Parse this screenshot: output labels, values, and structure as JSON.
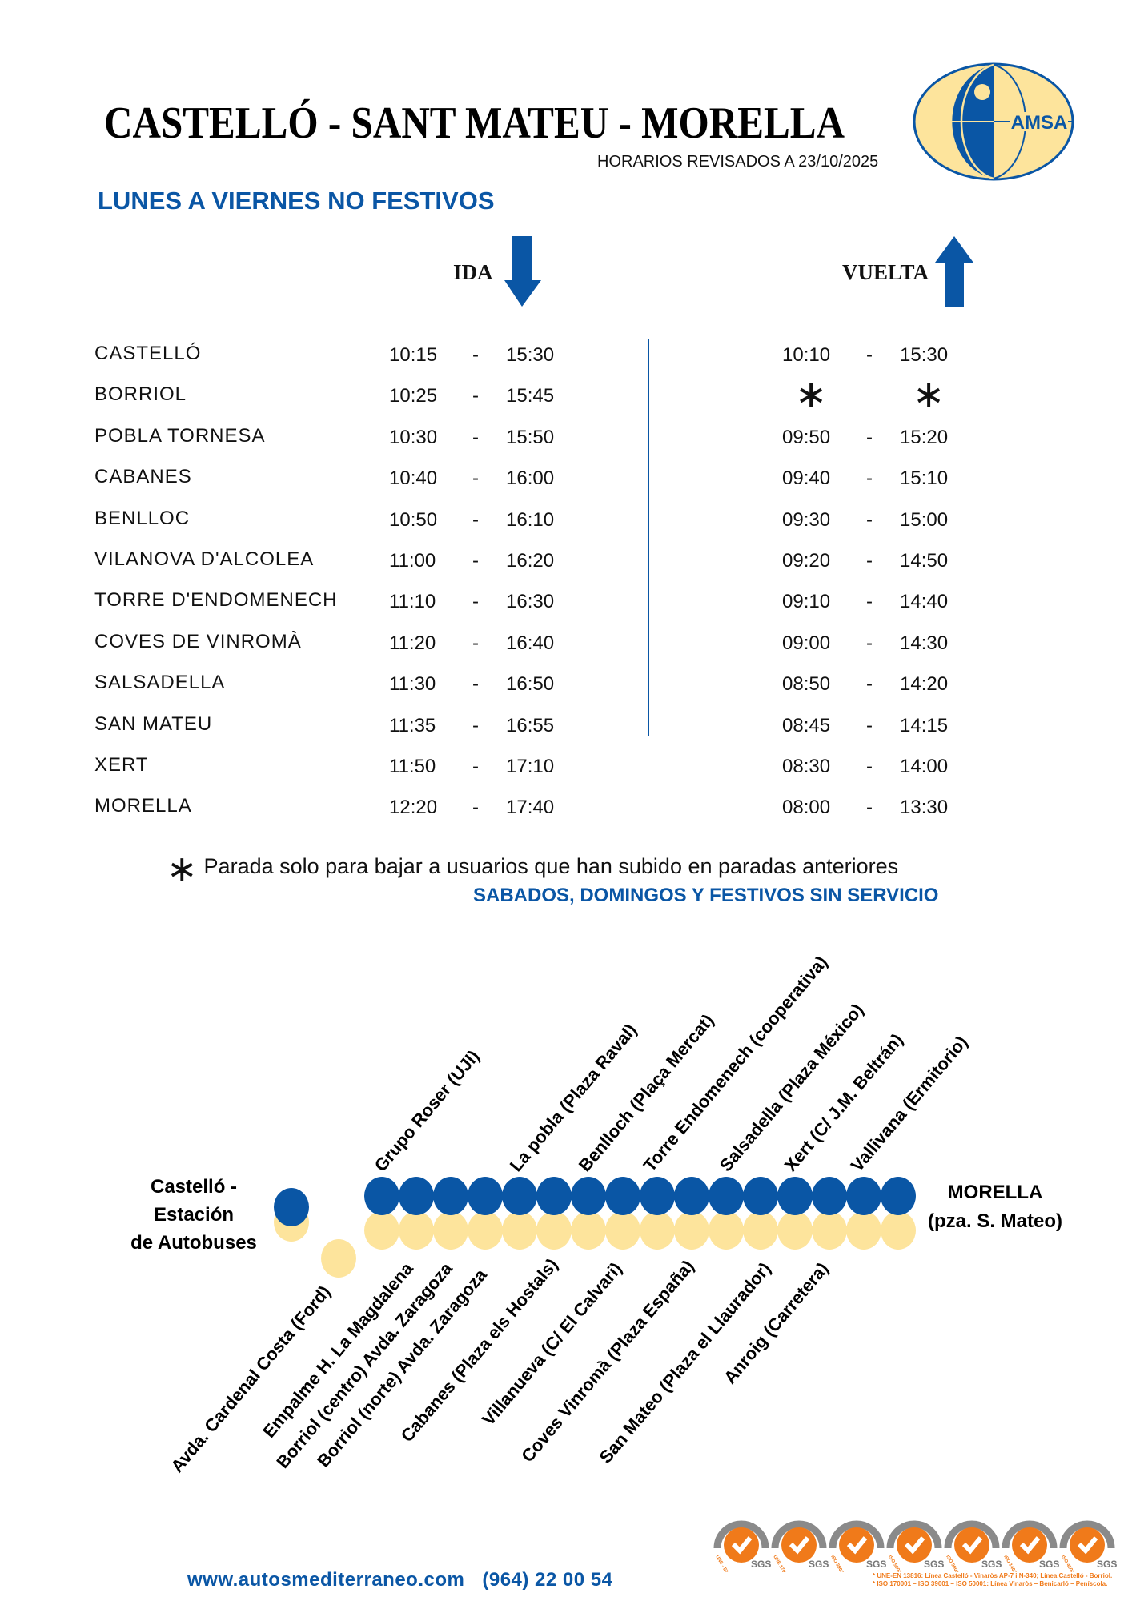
{
  "header": {
    "title": "CASTELLÓ - SANT MATEU - MORELLA",
    "revised": "HORARIOS REVISADOS A 23/10/2025",
    "logo_text": "AMSA"
  },
  "schedule": {
    "day_type": "LUNES A VIERNES NO FESTIVOS",
    "ida_label": "IDA",
    "vuelta_label": "VUELTA",
    "rows": [
      {
        "stop": "CASTELLÓ",
        "ida": [
          "10:15",
          "15:30"
        ],
        "vuelta": [
          "10:10",
          "15:30"
        ]
      },
      {
        "stop": "BORRIOL",
        "ida": [
          "10:25",
          "15:45"
        ],
        "vuelta": [
          "*",
          "*"
        ]
      },
      {
        "stop": "POBLA TORNESA",
        "ida": [
          "10:30",
          "15:50"
        ],
        "vuelta": [
          "09:50",
          "15:20"
        ]
      },
      {
        "stop": "CABANES",
        "ida": [
          "10:40",
          "16:00"
        ],
        "vuelta": [
          "09:40",
          "15:10"
        ]
      },
      {
        "stop": "BENLLOC",
        "ida": [
          "10:50",
          "16:10"
        ],
        "vuelta": [
          "09:30",
          "15:00"
        ]
      },
      {
        "stop": "VILANOVA D'ALCOLEA",
        "ida": [
          "11:00",
          "16:20"
        ],
        "vuelta": [
          "09:20",
          "14:50"
        ]
      },
      {
        "stop": "TORRE D'ENDOMENECH",
        "ida": [
          "11:10",
          "16:30"
        ],
        "vuelta": [
          "09:10",
          "14:40"
        ]
      },
      {
        "stop": "COVES DE VINROMÀ",
        "ida": [
          "11:20",
          "16:40"
        ],
        "vuelta": [
          "09:00",
          "14:30"
        ]
      },
      {
        "stop": "SALSADELLA",
        "ida": [
          "11:30",
          "16:50"
        ],
        "vuelta": [
          "08:50",
          "14:20"
        ]
      },
      {
        "stop": "SAN MATEU",
        "ida": [
          "11:35",
          "16:55"
        ],
        "vuelta": [
          "08:45",
          "14:15"
        ]
      },
      {
        "stop": "XERT",
        "ida": [
          "11:50",
          "17:10"
        ],
        "vuelta": [
          "08:30",
          "14:00"
        ]
      },
      {
        "stop": "MORELLA",
        "ida": [
          "12:20",
          "17:40"
        ],
        "vuelta": [
          "08:00",
          "13:30"
        ]
      }
    ],
    "separator": "-",
    "footnote_symbol": "∗",
    "footnote": "Parada solo para bajar a usuarios que han subido en paradas anteriores",
    "no_service": "SABADOS, DOMINGOS Y FESTIVOS SIN SERVICIO"
  },
  "route_map": {
    "origin": [
      "Castelló -",
      "Estación",
      "de Autobuses"
    ],
    "destination": [
      "MORELLA",
      "(pza. S. Mateo)"
    ],
    "top_stops": [
      "Grupo Roser (UJI)",
      "La pobla (Plaza Raval)",
      "Benlloch (Plaça Mercat)",
      "Torre Endomenech (cooperativa)",
      "Salsadella (Plaza México)",
      "Xert (C/ J.M. Beltrán)",
      "Vallivana (Ermitorio)"
    ],
    "bottom_stops": [
      "Avda. Cardenal Costa (Ford)",
      "Empalme H. La Magdalena",
      "Borriol (centro) Avda. Zaragoza",
      "Borriol (norte) Avda. Zaragoza",
      "Cabanes (Plaza els Hostals)",
      "Villanueva (C/ El Calvari)",
      "Coves Vinromà (Plaza España)",
      "San Mateo (Plaza el Llaurador)",
      "Anroig (Carretera)"
    ],
    "colors": {
      "ida": "#0a56a5",
      "vuelta": "#fde49c"
    }
  },
  "footer": {
    "website": "www.autosmediterraneo.com",
    "phone": "(964) 22 00 54",
    "certifications": [
      "UNE - EN 13816",
      "UNE 170001",
      "ISO 39001",
      "ISO 50001",
      "ISO 9001",
      "ISO 14001",
      "ISO 45001"
    ],
    "cert_brand": "SGS",
    "cert_notes": [
      "* UNE-EN 13816: Línea Castelló - Vinaròs AP-7 i N-340; Línea Castelló - Borriol.",
      "* ISO 170001 – ISO 39001 – ISO 50001: Línea Vinaròs – Benicarló – Peníscola."
    ]
  }
}
